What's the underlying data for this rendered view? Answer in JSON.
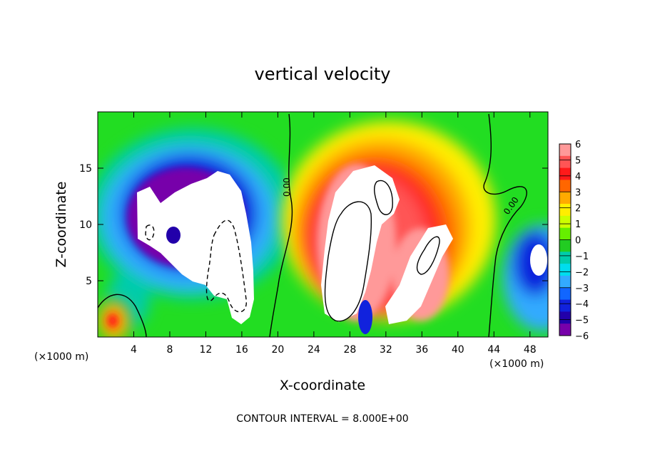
{
  "chart_data": {
    "type": "heatmap",
    "title": "vertical velocity",
    "xlabel": "X-coordinate",
    "ylabel": "Z-coordinate",
    "x_unit_label": "(×1000 m)",
    "y_unit_label": "(×1000 m)",
    "xlim": [
      0,
      50
    ],
    "ylim": [
      0,
      20
    ],
    "xticks": [
      4,
      8,
      12,
      16,
      20,
      24,
      28,
      32,
      36,
      40,
      44,
      48
    ],
    "yticks": [
      5,
      10,
      15
    ],
    "footer": "CONTOUR INTERVAL = 8.000E+00",
    "contour_labels": [
      "0.00",
      "0.00"
    ],
    "colorbar": {
      "levels": [
        6,
        5,
        4,
        3,
        2,
        1,
        0,
        -1,
        -2,
        -3,
        -4,
        -5,
        -6
      ],
      "level_labels": [
        "6",
        "5",
        "4",
        "3",
        "2",
        "1",
        "0",
        "−1",
        "−2",
        "−3",
        "−4",
        "−5",
        "−6"
      ],
      "colors": [
        "#ff9999",
        "#ff5555",
        "#ff1a1a",
        "#ff6600",
        "#ffaa00",
        "#ffee00",
        "#ccff00",
        "#66ee00",
        "#22cc22",
        "#00ccaa",
        "#00ddee",
        "#33aaff",
        "#1166ff",
        "#1122dd",
        "#2200aa",
        "#7700aa"
      ]
    }
  }
}
